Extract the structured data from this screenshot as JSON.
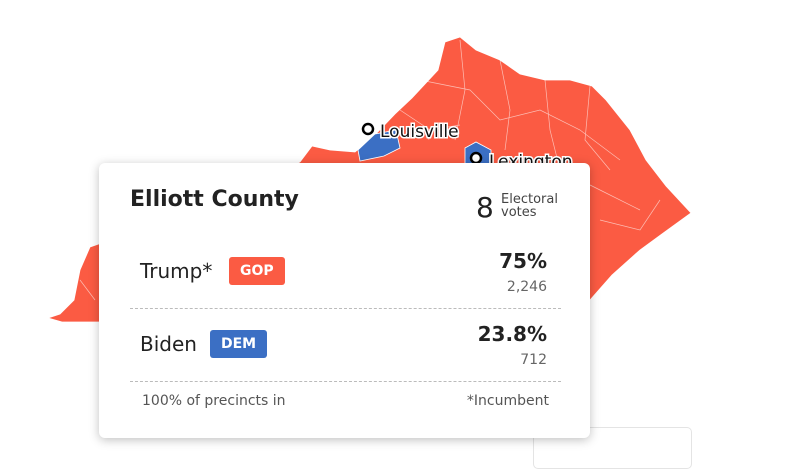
{
  "map": {
    "cities": [
      {
        "name": "Louisville"
      },
      {
        "name": "Lexington"
      }
    ]
  },
  "tooltip": {
    "county": "Elliott County",
    "electoral_votes": "8",
    "electoral_label": "Electoral votes",
    "candidates": [
      {
        "name": "Trump*",
        "party": "GOP",
        "percent": "75%",
        "votes": "2,246"
      },
      {
        "name": "Biden",
        "party": "DEM",
        "percent": "23.8%",
        "votes": "712"
      }
    ],
    "precincts": "100% of precincts in",
    "footnote": "*Incumbent"
  }
}
